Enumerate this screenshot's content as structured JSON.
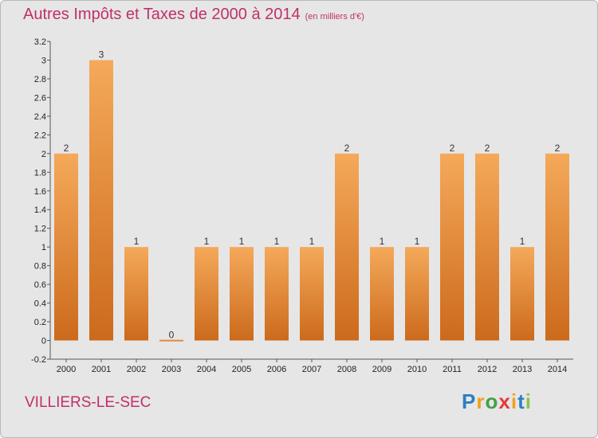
{
  "header": {
    "title": "Autres Impôts et Taxes de 2000 à 2014",
    "unit": "(en milliers d'€)"
  },
  "footer": {
    "city": "VILLIERS-LE-SEC",
    "logo": [
      "P",
      "r",
      "o",
      "x",
      "i",
      "t",
      "i"
    ],
    "logo_colors": [
      "#2d7fc1",
      "#f0a020",
      "#43a047",
      "#e53935",
      "#f0a020",
      "#2d7fc1",
      "#8bc34a"
    ]
  },
  "colors": {
    "bar_top": "#f5a95a",
    "bar_bottom": "#cc6a1c",
    "background": "#e6e6e6",
    "accent": "#c0306a"
  },
  "chart_data": {
    "type": "bar",
    "title": "Autres Impôts et Taxes de 2000 à 2014",
    "subtitle": "(en milliers d'€)",
    "categories": [
      "2000",
      "2001",
      "2002",
      "2003",
      "2004",
      "2005",
      "2006",
      "2007",
      "2008",
      "2009",
      "2010",
      "2011",
      "2012",
      "2013",
      "2014"
    ],
    "values": [
      2,
      3,
      1,
      0,
      1,
      1,
      1,
      1,
      2,
      1,
      1,
      2,
      2,
      1,
      2
    ],
    "data_labels": [
      "2",
      "3",
      "1",
      "0",
      "1",
      "1",
      "1",
      "1",
      "2",
      "1",
      "1",
      "2",
      "2",
      "1",
      "2"
    ],
    "yticks": [
      -0.2,
      0,
      0.2,
      0.4,
      0.6,
      0.8,
      1,
      1.2,
      1.4,
      1.6,
      1.8,
      2,
      2.2,
      2.4,
      2.6,
      2.8,
      3,
      3.2
    ],
    "ytick_labels": [
      "-0.2",
      "0",
      "0.2",
      "0.4",
      "0.6",
      "0.8",
      "1",
      "1.2",
      "1.4",
      "1.6",
      "1.8",
      "2",
      "2.2",
      "2.4",
      "2.6",
      "2.8",
      "3",
      "3.2"
    ],
    "ylim": [
      -0.2,
      3.2
    ],
    "grid": false,
    "legend": "none"
  }
}
